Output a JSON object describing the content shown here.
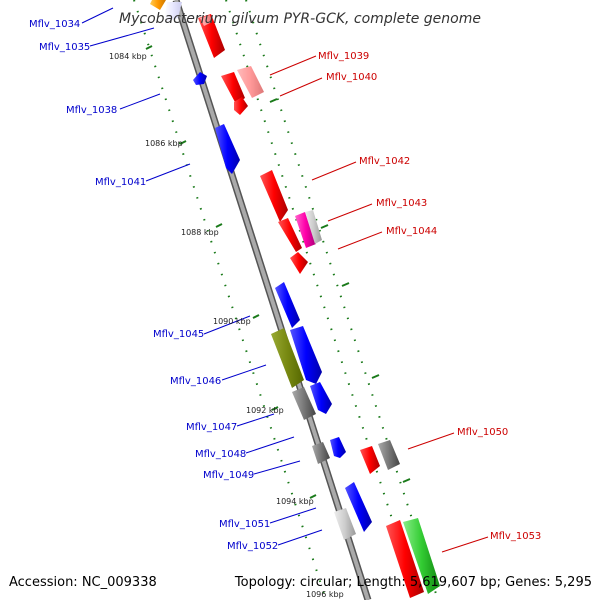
{
  "title": "Mycobacterium gilvum PYR-GCK, complete genome",
  "accession": "Accession: NC_009338",
  "summary": "Topology: circular; Length: 5,619,607 bp; Genes: 5,295",
  "colors": {
    "backbone": "#8c8c8c",
    "forward_label": "#cc0000",
    "reverse_label": "#0000cc",
    "tick": "#1a7a1a"
  },
  "ticks": [
    "1084 kbp",
    "1086 kbp",
    "1088 kbp",
    "1090 kbp",
    "1092 kbp",
    "1094 kbp",
    "1096 kbp"
  ],
  "labels": {
    "left": [
      "Mflv_1034",
      "Mflv_1035",
      "Mflv_1038",
      "Mflv_1041",
      "Mflv_1045",
      "Mflv_1046",
      "Mflv_1047",
      "Mflv_1048",
      "Mflv_1049",
      "Mflv_1051",
      "Mflv_1052"
    ],
    "right": [
      "Mflv_1039",
      "Mflv_1040",
      "Mflv_1042",
      "Mflv_1043",
      "Mflv_1044",
      "Mflv_1050",
      "Mflv_1053"
    ]
  }
}
